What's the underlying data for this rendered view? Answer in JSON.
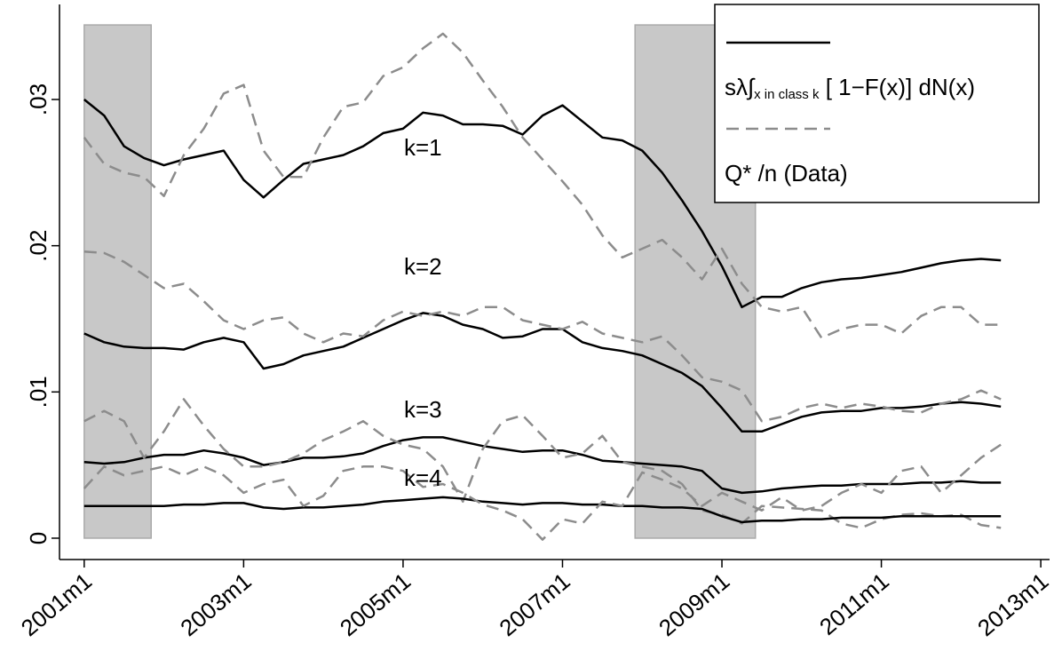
{
  "chart_data": {
    "type": "line",
    "x": [
      2001,
      2001.25,
      2001.5,
      2001.75,
      2002,
      2002.25,
      2002.5,
      2002.75,
      2003,
      2003.25,
      2003.5,
      2003.75,
      2004,
      2004.25,
      2004.5,
      2004.75,
      2005,
      2005.25,
      2005.5,
      2005.75,
      2006,
      2006.25,
      2006.5,
      2006.75,
      2007,
      2007.25,
      2007.5,
      2007.75,
      2008,
      2008.25,
      2008.5,
      2008.75,
      2009,
      2009.25,
      2009.5,
      2009.75,
      2010,
      2010.25,
      2010.5,
      2010.75,
      2011,
      2011.25,
      2011.5,
      2011.75,
      2012,
      2012.25,
      2012.5
    ],
    "series": [
      {
        "name": [
          "sλ∫",
          "x in class k",
          " [ 1−F(x)] dN(x)"
        ],
        "color": "#000000",
        "dash": false,
        "values": [
          0.03,
          0.0289,
          0.0268,
          0.026,
          0.0255,
          0.0259,
          0.0262,
          0.0265,
          0.0245,
          0.0233,
          0.0245,
          0.0256,
          0.0259,
          0.0262,
          0.0268,
          0.0277,
          0.028,
          0.0291,
          0.0289,
          0.0283,
          0.0283,
          0.0282,
          0.0276,
          0.0289,
          0.0296,
          0.0285,
          0.0274,
          0.0272,
          0.0265,
          0.025,
          0.0231,
          0.021,
          0.0186,
          0.0158,
          0.0165,
          0.0165,
          0.0171,
          0.0175,
          0.0177,
          0.0178,
          0.018,
          0.0182,
          0.0185,
          0.0188,
          0.019,
          0.0191,
          0.019
        ]
      },
      {
        "name": "Q* /n (Data)",
        "color": "#8c8c8c",
        "dash": true,
        "values": [
          0.0274,
          0.0256,
          0.025,
          0.0247,
          0.0234,
          0.0262,
          0.028,
          0.0304,
          0.031,
          0.0265,
          0.0247,
          0.0247,
          0.0274,
          0.0295,
          0.0298,
          0.0316,
          0.0322,
          0.0335,
          0.0345,
          0.0332,
          0.0313,
          0.0295,
          0.0274,
          0.0259,
          0.0244,
          0.0228,
          0.0207,
          0.0192,
          0.0198,
          0.0204,
          0.0192,
          0.0177,
          0.0198,
          0.0174,
          0.0158,
          0.0155,
          0.0158,
          0.0137,
          0.0143,
          0.0146,
          0.0146,
          0.014,
          0.0152,
          0.0158,
          0.0158,
          0.0146,
          0.0146
        ]
      },
      {
        "color": "#000000",
        "dash": false,
        "values": [
          0.014,
          0.0134,
          0.0131,
          0.013,
          0.013,
          0.0129,
          0.0134,
          0.0137,
          0.0134,
          0.0116,
          0.0119,
          0.0125,
          0.0128,
          0.0131,
          0.0137,
          0.0143,
          0.0149,
          0.0154,
          0.0152,
          0.0146,
          0.0143,
          0.0137,
          0.0138,
          0.0143,
          0.0143,
          0.0134,
          0.013,
          0.0128,
          0.0125,
          0.0119,
          0.0113,
          0.0104,
          0.0089,
          0.0073,
          0.0073,
          0.0078,
          0.0083,
          0.0086,
          0.0087,
          0.0087,
          0.0089,
          0.0089,
          0.009,
          0.0092,
          0.0093,
          0.0092,
          0.009
        ]
      },
      {
        "color": "#8c8c8c",
        "dash": true,
        "values": [
          0.0196,
          0.0195,
          0.0189,
          0.018,
          0.0171,
          0.0174,
          0.0162,
          0.0149,
          0.0143,
          0.0149,
          0.0151,
          0.014,
          0.0134,
          0.014,
          0.0138,
          0.0149,
          0.0155,
          0.0152,
          0.0155,
          0.0152,
          0.0158,
          0.0158,
          0.0149,
          0.0146,
          0.0143,
          0.0148,
          0.014,
          0.0137,
          0.0134,
          0.0138,
          0.0125,
          0.011,
          0.0107,
          0.0101,
          0.008,
          0.0083,
          0.0089,
          0.0092,
          0.0089,
          0.0092,
          0.009,
          0.0087,
          0.0086,
          0.0092,
          0.0095,
          0.0101,
          0.0095
        ]
      },
      {
        "color": "#000000",
        "dash": false,
        "values": [
          0.0052,
          0.0051,
          0.0052,
          0.0055,
          0.0057,
          0.0057,
          0.006,
          0.0058,
          0.0055,
          0.005,
          0.0052,
          0.0055,
          0.0055,
          0.0056,
          0.0058,
          0.0063,
          0.0067,
          0.0069,
          0.0069,
          0.0066,
          0.0063,
          0.0061,
          0.0059,
          0.006,
          0.006,
          0.0057,
          0.0053,
          0.0052,
          0.0051,
          0.005,
          0.0049,
          0.0046,
          0.0034,
          0.0031,
          0.0032,
          0.0034,
          0.0035,
          0.0036,
          0.0036,
          0.0037,
          0.0037,
          0.0037,
          0.0038,
          0.0038,
          0.0039,
          0.0038,
          0.0038
        ]
      },
      {
        "color": "#8c8c8c",
        "dash": true,
        "values": [
          0.008,
          0.0087,
          0.008,
          0.0055,
          0.0073,
          0.0095,
          0.0077,
          0.0061,
          0.0049,
          0.0049,
          0.0052,
          0.0058,
          0.0067,
          0.0073,
          0.008,
          0.007,
          0.0064,
          0.0061,
          0.0049,
          0.0025,
          0.0061,
          0.008,
          0.0084,
          0.007,
          0.0055,
          0.0058,
          0.007,
          0.0052,
          0.0049,
          0.0046,
          0.0037,
          0.0019,
          0.0016,
          0.001,
          0.0022,
          0.0021,
          0.002,
          0.0019,
          0.001,
          0.0007,
          0.0013,
          0.0016,
          0.0017,
          0.0015,
          0.0016,
          0.0009,
          0.0007
        ]
      },
      {
        "color": "#000000",
        "dash": false,
        "values": [
          0.0022,
          0.0022,
          0.0022,
          0.0022,
          0.0022,
          0.0023,
          0.0023,
          0.0024,
          0.0024,
          0.0021,
          0.002,
          0.0021,
          0.0021,
          0.0022,
          0.0023,
          0.0025,
          0.0026,
          0.0027,
          0.0028,
          0.0027,
          0.0025,
          0.0024,
          0.0023,
          0.0024,
          0.0024,
          0.0023,
          0.0023,
          0.0022,
          0.0022,
          0.0021,
          0.0021,
          0.002,
          0.0015,
          0.0011,
          0.0012,
          0.0012,
          0.0013,
          0.0013,
          0.0014,
          0.0014,
          0.0014,
          0.0015,
          0.0015,
          0.0015,
          0.0015,
          0.0015,
          0.0015
        ]
      },
      {
        "color": "#8c8c8c",
        "dash": true,
        "values": [
          0.0034,
          0.0049,
          0.0043,
          0.0046,
          0.0049,
          0.0043,
          0.0049,
          0.0043,
          0.0031,
          0.0037,
          0.004,
          0.0022,
          0.0029,
          0.0046,
          0.0049,
          0.0049,
          0.0046,
          0.0035,
          0.0037,
          0.0031,
          0.0023,
          0.0019,
          0.0013,
          -0.0001,
          0.0013,
          0.001,
          0.0025,
          0.0022,
          0.0045,
          0.004,
          0.0034,
          0.0022,
          0.0031,
          0.0025,
          0.0019,
          0.0028,
          0.0019,
          0.0022,
          0.0031,
          0.0037,
          0.0031,
          0.0046,
          0.0049,
          0.0031,
          0.0043,
          0.0055,
          0.0064
        ]
      }
    ],
    "annotations": [
      "k=1",
      "k=2",
      "k=3",
      "k=4"
    ],
    "shaded_regions": [
      {
        "x": [
          2001,
          2001.84
        ],
        "y": [
          0,
          0.0351
        ],
        "color": "#c8c8c8"
      },
      {
        "x": [
          2007.91,
          2009.42
        ],
        "y": [
          0,
          0.0351
        ],
        "color": "#c8c8c8"
      }
    ],
    "xlim": [
      2000.69,
      2013.11
    ],
    "ylim": [
      -0.00146,
      0.0365
    ],
    "xticks": [
      {
        "value": 2001,
        "label": "2001m1"
      },
      {
        "value": 2003,
        "label": "2003m1"
      },
      {
        "value": 2005,
        "label": "2005m1"
      },
      {
        "value": 2007,
        "label": "2007m1"
      },
      {
        "value": 2009,
        "label": "2009m1"
      },
      {
        "value": 2011,
        "label": "2011m1"
      },
      {
        "value": 2013,
        "label": "2013m1"
      }
    ],
    "yticks": [
      0,
      {
        "value": 0.01,
        "label": ".01"
      },
      {
        "value": 0.02,
        "label": ".02"
      },
      {
        "value": 0.03,
        "label": ".03"
      }
    ],
    "grid": false,
    "legend": "top-right"
  }
}
